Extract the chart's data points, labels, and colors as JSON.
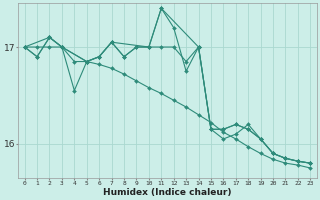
{
  "xlabel": "Humidex (Indice chaleur)",
  "bg_color": "#cceee8",
  "line_color": "#2e8b7a",
  "grid_color": "#aad8d0",
  "xlim": [
    -0.5,
    23.5
  ],
  "ylim": [
    15.65,
    17.45
  ],
  "yticks": [
    16,
    17
  ],
  "xticks": [
    0,
    1,
    2,
    3,
    4,
    5,
    6,
    7,
    8,
    9,
    10,
    11,
    12,
    13,
    14,
    15,
    16,
    17,
    18,
    19,
    20,
    21,
    22,
    23
  ],
  "lines": [
    {
      "x": [
        0,
        1,
        2,
        3,
        4,
        5,
        6,
        7,
        8,
        9,
        10,
        11,
        12,
        13,
        14,
        15,
        16,
        17,
        18,
        19,
        20,
        21,
        22,
        23
      ],
      "y": [
        17.0,
        16.9,
        17.1,
        17.0,
        16.55,
        16.85,
        16.9,
        17.05,
        16.9,
        17.0,
        17.0,
        17.4,
        17.2,
        16.75,
        17.0,
        16.15,
        16.05,
        16.1,
        16.2,
        16.05,
        15.9,
        15.85,
        15.82,
        15.8
      ]
    },
    {
      "x": [
        0,
        1,
        2,
        3,
        5,
        6,
        7,
        8,
        9,
        10,
        11,
        12,
        13,
        14,
        15,
        16,
        17,
        18,
        19,
        20,
        21,
        22,
        23
      ],
      "y": [
        17.0,
        16.9,
        17.1,
        17.0,
        16.85,
        16.9,
        17.05,
        16.9,
        17.0,
        17.0,
        17.0,
        17.0,
        16.85,
        17.0,
        16.15,
        16.15,
        16.2,
        16.15,
        16.05,
        15.9,
        15.85,
        15.82,
        15.8
      ]
    },
    {
      "x": [
        0,
        2,
        3,
        5,
        6,
        7,
        10,
        11,
        14,
        15,
        16,
        17,
        18,
        19,
        20,
        21,
        22,
        23
      ],
      "y": [
        17.0,
        17.1,
        17.0,
        16.85,
        16.9,
        17.05,
        17.0,
        17.4,
        17.0,
        16.15,
        16.15,
        16.2,
        16.15,
        16.05,
        15.9,
        15.85,
        15.82,
        15.8
      ]
    },
    {
      "x": [
        0,
        1,
        2,
        3,
        4,
        5,
        6,
        7,
        8,
        9,
        10,
        11,
        12,
        13,
        14,
        15,
        16,
        17,
        18,
        19,
        20,
        21,
        22,
        23
      ],
      "y": [
        17.0,
        17.0,
        17.0,
        17.0,
        16.85,
        16.85,
        16.82,
        16.78,
        16.72,
        16.65,
        16.58,
        16.52,
        16.45,
        16.38,
        16.3,
        16.22,
        16.12,
        16.05,
        15.97,
        15.9,
        15.84,
        15.8,
        15.78,
        15.75
      ]
    }
  ]
}
